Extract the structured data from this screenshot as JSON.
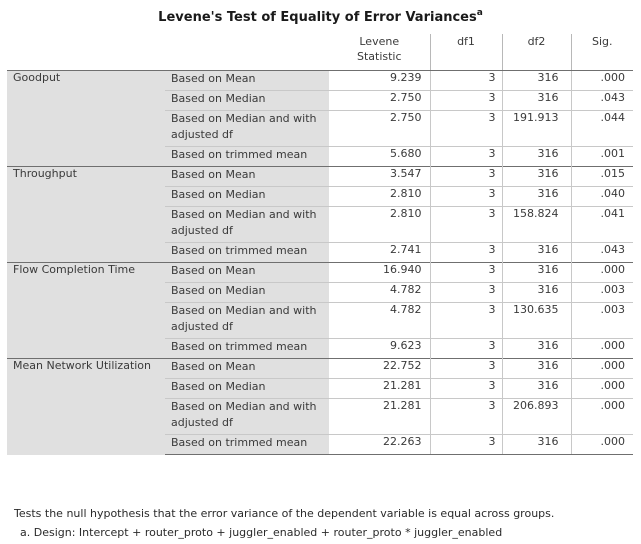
{
  "title": "Levene's Test of Equality of Error Variances",
  "title_superscript": "a",
  "columns": {
    "statistic_line1": "Levene",
    "statistic_line2": "Statistic",
    "df1": "df1",
    "df2": "df2",
    "sig": "Sig."
  },
  "groups": [
    {
      "variable": "Goodput",
      "rows": [
        {
          "basis": "Based on Mean",
          "statistic": "9.239",
          "df1": "3",
          "df2": "316",
          "sig": ".000"
        },
        {
          "basis": "Based on Median",
          "statistic": "2.750",
          "df1": "3",
          "df2": "316",
          "sig": ".043"
        },
        {
          "basis": "Based on Median and with adjusted df",
          "statistic": "2.750",
          "df1": "3",
          "df2": "191.913",
          "sig": ".044"
        },
        {
          "basis": "Based on trimmed mean",
          "statistic": "5.680",
          "df1": "3",
          "df2": "316",
          "sig": ".001"
        }
      ]
    },
    {
      "variable": "Throughput",
      "rows": [
        {
          "basis": "Based on Mean",
          "statistic": "3.547",
          "df1": "3",
          "df2": "316",
          "sig": ".015"
        },
        {
          "basis": "Based on Median",
          "statistic": "2.810",
          "df1": "3",
          "df2": "316",
          "sig": ".040"
        },
        {
          "basis": "Based on Median and with adjusted df",
          "statistic": "2.810",
          "df1": "3",
          "df2": "158.824",
          "sig": ".041"
        },
        {
          "basis": "Based on trimmed mean",
          "statistic": "2.741",
          "df1": "3",
          "df2": "316",
          "sig": ".043"
        }
      ]
    },
    {
      "variable": "Flow Completion Time",
      "rows": [
        {
          "basis": "Based on Mean",
          "statistic": "16.940",
          "df1": "3",
          "df2": "316",
          "sig": ".000"
        },
        {
          "basis": "Based on Median",
          "statistic": "4.782",
          "df1": "3",
          "df2": "316",
          "sig": ".003"
        },
        {
          "basis": "Based on Median and with adjusted df",
          "statistic": "4.782",
          "df1": "3",
          "df2": "130.635",
          "sig": ".003"
        },
        {
          "basis": "Based on trimmed mean",
          "statistic": "9.623",
          "df1": "3",
          "df2": "316",
          "sig": ".000"
        }
      ]
    },
    {
      "variable": "Mean Network Utilization",
      "rows": [
        {
          "basis": "Based on Mean",
          "statistic": "22.752",
          "df1": "3",
          "df2": "316",
          "sig": ".000"
        },
        {
          "basis": "Based on Median",
          "statistic": "21.281",
          "df1": "3",
          "df2": "316",
          "sig": ".000"
        },
        {
          "basis": "Based on Median and with adjusted df",
          "statistic": "21.281",
          "df1": "3",
          "df2": "206.893",
          "sig": ".000"
        },
        {
          "basis": "Based on trimmed mean",
          "statistic": "22.263",
          "df1": "3",
          "df2": "316",
          "sig": ".000"
        }
      ]
    }
  ],
  "footnotes": {
    "note": "Tests the null hypothesis that the error variance of the dependent variable is equal across groups.",
    "design": "a. Design: Intercept + router_proto + juggler_enabled + router_proto * juggler_enabled"
  },
  "colors": {
    "label_shading": "#e0e0e0",
    "border": "#6f6f6f"
  }
}
